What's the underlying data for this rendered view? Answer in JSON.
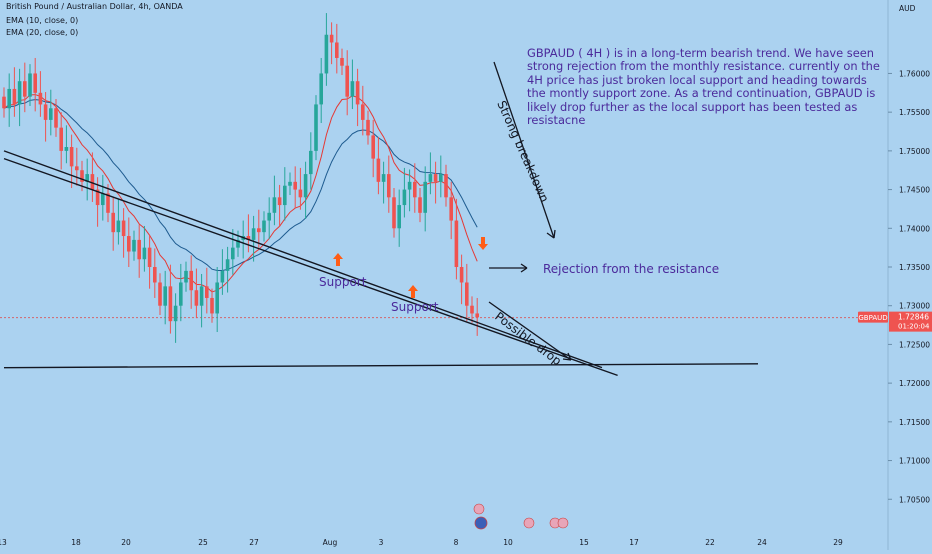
{
  "header": {
    "symbol_line": "British Pound / Australian Dollar, 4h, OANDA",
    "ema1": "EMA (10, close, 0)",
    "ema2": "EMA (20, close, 0)"
  },
  "chart_data": {
    "type": "candlestick",
    "symbol": "GBPAUD",
    "currency": "AUD",
    "ylim": [
      1.704,
      1.766
    ],
    "y_ticks": [
      "1.76000",
      "1.75500",
      "1.75000",
      "1.74500",
      "1.74000",
      "1.73500",
      "1.73000",
      "1.72500",
      "1.72000",
      "1.71500",
      "1.71000",
      "1.70500"
    ],
    "x_ticks": [
      "13",
      "18",
      "20",
      "25",
      "27",
      "Aug",
      "3",
      "8",
      "10",
      "15",
      "17",
      "22",
      "24",
      "29"
    ],
    "last_price": {
      "value": 1.72846,
      "label": "1.72846",
      "countdown": "01:20:04",
      "tag": "GBPAUD"
    },
    "colors": {
      "up": "#26a69a",
      "down": "#ef5350",
      "ema10": "#e53935",
      "ema20": "#1e5b8f"
    },
    "closes": [
      1.7555,
      1.758,
      1.756,
      1.759,
      1.757,
      1.76,
      1.7575,
      1.756,
      1.754,
      1.7555,
      1.753,
      1.75,
      1.7505,
      1.748,
      1.7475,
      1.746,
      1.747,
      1.745,
      1.743,
      1.7445,
      1.742,
      1.7395,
      1.741,
      1.739,
      1.737,
      1.7385,
      1.736,
      1.7375,
      1.735,
      1.733,
      1.73,
      1.7325,
      1.728,
      1.73,
      1.733,
      1.7345,
      1.732,
      1.73,
      1.7325,
      1.731,
      1.729,
      1.733,
      1.7345,
      1.736,
      1.7375,
      1.7385,
      1.739,
      1.7385,
      1.74,
      1.7395,
      1.741,
      1.742,
      1.744,
      1.743,
      1.7455,
      1.746,
      1.745,
      1.744,
      1.747,
      1.75,
      1.756,
      1.76,
      1.765,
      1.764,
      1.762,
      1.761,
      1.757,
      1.759,
      1.756,
      1.754,
      1.752,
      1.749,
      1.746,
      1.747,
      1.744,
      1.74,
      1.743,
      1.745,
      1.746,
      1.744,
      1.742,
      1.746,
      1.747,
      1.746,
      1.747,
      1.744,
      1.741,
      1.735,
      1.733,
      1.73,
      1.729,
      1.7285
    ],
    "lines": [
      {
        "name": "trendline-upper",
        "points": [
          [
            0,
            1.75
          ],
          [
            115,
            1.722
          ]
        ]
      },
      {
        "name": "trendline-lower",
        "points": [
          [
            0,
            1.749
          ],
          [
            118,
            1.721
          ]
        ]
      },
      {
        "name": "support-line",
        "points": [
          [
            0,
            1.722
          ],
          [
            145,
            1.7225
          ]
        ]
      }
    ]
  },
  "annotations": {
    "note": "GBPAUD ( 4H ) is in a long-term bearish trend. We have seen strong rejection from the monthly resistance. currently on the 4H price has just broken local support and heading towards the montly support zone. As a trend continuation, GBPAUD is likely drop further as the local support has been tested as resistacne",
    "strong_breakdown": "Strong breakdown",
    "rejection": "Rejection from the resistance",
    "possible_drop": "Possible drop",
    "support1": "Support",
    "support2": "Support"
  }
}
